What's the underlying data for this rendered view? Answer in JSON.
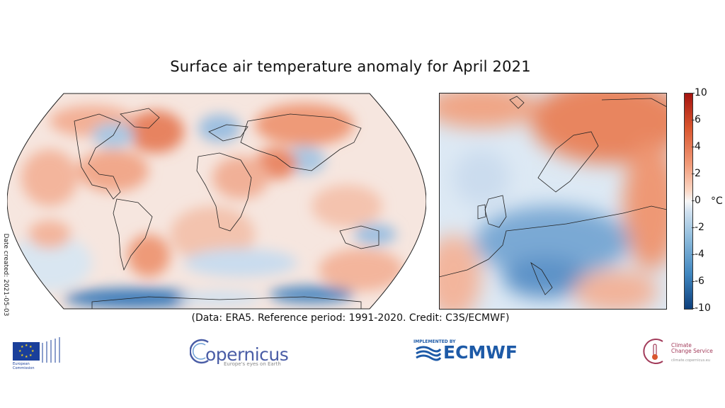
{
  "title": "Surface air temperature anomaly for April 2021",
  "date_created": "Date created: 2021-05-03",
  "caption": "(Data: ERA5.  Reference period: 1991-2020.  Credit: C3S/ECMWF)",
  "colorbar": {
    "unit": "°C",
    "ticks": [
      "10",
      "6",
      "4",
      "2",
      "0",
      "-2",
      "-4",
      "-6",
      "-10"
    ],
    "colors": {
      "warm": "#d9562f",
      "cool": "#3f86bf",
      "neutral": "#f7f7f7"
    }
  },
  "maps": [
    {
      "name": "global",
      "projection": "Robinson"
    },
    {
      "name": "europe",
      "projection": "regional"
    }
  ],
  "logos": {
    "eu": {
      "line1": "European",
      "line2": "Commission"
    },
    "copernicus": {
      "name": "opernicus",
      "sub": "Europe's eyes on Earth"
    },
    "ecmwf": {
      "implemented": "IMPLEMENTED BY",
      "name": "ECMWF"
    },
    "c3s": {
      "line1": "Climate",
      "line2": "Change Service",
      "sub": "climate.copernicus.eu"
    }
  }
}
